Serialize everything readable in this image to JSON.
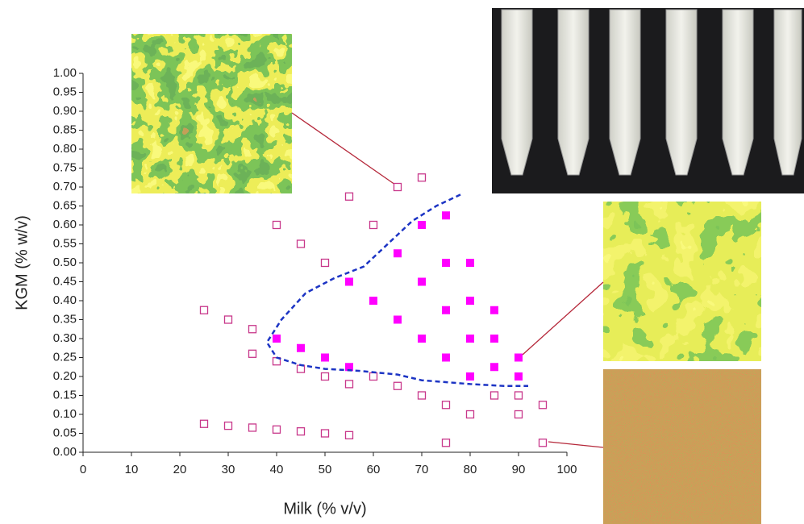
{
  "chart_data": {
    "type": "scatter",
    "x_label": "Milk (% v/v)",
    "y_label": "KGM (% w/v)",
    "xlim": [
      0,
      100
    ],
    "ylim": [
      0,
      1
    ],
    "xticks": [
      0,
      10,
      20,
      30,
      40,
      50,
      60,
      70,
      80,
      90,
      100
    ],
    "yticks": [
      {
        "value": 0,
        "label": "0.00"
      },
      {
        "value": 0.05,
        "label": "0.05"
      },
      {
        "value": 0.1,
        "label": "0.10"
      },
      {
        "value": 0.15,
        "label": "0.15"
      },
      {
        "value": 0.2,
        "label": "0.20"
      },
      {
        "value": 0.25,
        "label": "0.25"
      },
      {
        "value": 0.3,
        "label": "0.30"
      },
      {
        "value": 0.35,
        "label": "0.35"
      },
      {
        "value": 0.4,
        "label": "0.40"
      },
      {
        "value": 0.45,
        "label": "0.45"
      },
      {
        "value": 0.5,
        "label": "0.50"
      },
      {
        "value": 0.55,
        "label": "0.55"
      },
      {
        "value": 0.6,
        "label": "0.60"
      },
      {
        "value": 0.65,
        "label": "0.65"
      },
      {
        "value": 0.7,
        "label": "0.70"
      },
      {
        "value": 0.75,
        "label": "0.75"
      },
      {
        "value": 0.8,
        "label": "0.80"
      },
      {
        "value": 0.85,
        "label": "0.85"
      },
      {
        "value": 0.9,
        "label": "0.90"
      },
      {
        "value": 0.95,
        "label": "0.95"
      },
      {
        "value": 1,
        "label": "1.00"
      }
    ],
    "series": [
      {
        "style": "open-square",
        "color": "#c8378a",
        "x": [
          25,
          30,
          35,
          35,
          40,
          40,
          45,
          45,
          50,
          50,
          55,
          55,
          60,
          60,
          65,
          65,
          70,
          70,
          75,
          80,
          85,
          90,
          90,
          95,
          95,
          75,
          25,
          30,
          35,
          40,
          45,
          50,
          55
        ],
        "values": [
          0.375,
          0.35,
          0.325,
          0.26,
          0.6,
          0.24,
          0.55,
          0.22,
          0.5,
          0.2,
          0.675,
          0.18,
          0.6,
          0.2,
          0.7,
          0.175,
          0.725,
          0.15,
          0.125,
          0.1,
          0.15,
          0.15,
          0.1,
          0.125,
          0.025,
          0.025,
          0.075,
          0.07,
          0.065,
          0.06,
          0.055,
          0.05,
          0.045
        ]
      },
      {
        "style": "filled-square",
        "color": "#ff00ff",
        "x": [
          40,
          45,
          50,
          55,
          55,
          60,
          65,
          65,
          70,
          70,
          70,
          75,
          75,
          75,
          75,
          80,
          80,
          80,
          80,
          85,
          85,
          85,
          90,
          90
        ],
        "values": [
          0.3,
          0.275,
          0.25,
          0.45,
          0.225,
          0.4,
          0.525,
          0.35,
          0.6,
          0.45,
          0.3,
          0.625,
          0.5,
          0.375,
          0.25,
          0.5,
          0.4,
          0.3,
          0.2,
          0.375,
          0.3,
          0.225,
          0.25,
          0.2
        ]
      },
      {
        "style": "dashed-line",
        "color": "#1c34c4",
        "x": [
          78,
          73,
          68,
          63,
          58,
          52,
          46,
          41,
          38,
          40,
          45,
          50,
          57,
          65,
          70,
          80,
          87,
          92
        ],
        "values": [
          0.68,
          0.65,
          0.61,
          0.55,
          0.49,
          0.46,
          0.42,
          0.35,
          0.29,
          0.25,
          0.23,
          0.22,
          0.215,
          0.205,
          0.19,
          0.18,
          0.175,
          0.175
        ]
      }
    ]
  }
}
